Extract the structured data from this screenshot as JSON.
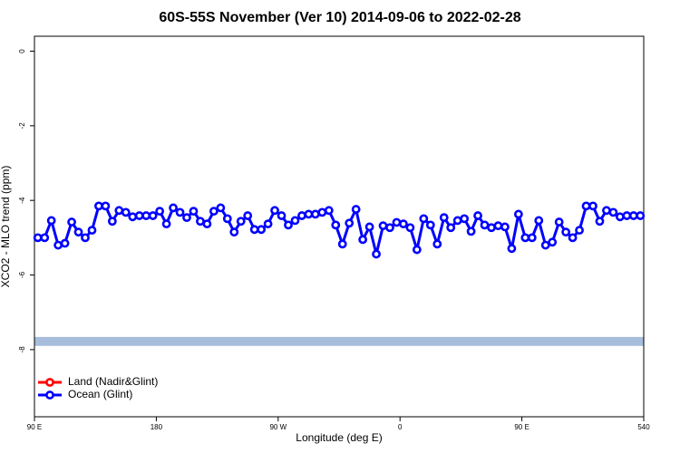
{
  "chart_data": {
    "type": "line",
    "title": "60S-55S November (Ver 10)   2014-09-06 to 2022-02-28",
    "xlabel": "Longitude (deg E)",
    "ylabel": "XCO2 - MLO trend (ppm)",
    "xlim": [
      90,
      540
    ],
    "ylim": [
      -9.8,
      0.4
    ],
    "xticks": [
      {
        "value": 90,
        "label": "90 E"
      },
      180,
      {
        "value": 270,
        "label": "90 W"
      },
      {
        "value": 360,
        "label": "0"
      },
      {
        "value": 450,
        "label": "90 E"
      },
      540
    ],
    "yticks": [
      0,
      -2,
      -4,
      -6,
      -8
    ],
    "legend": "bottom-left",
    "bands": [
      {
        "from": -7.66,
        "to": -7.9,
        "color": "#a6bddb"
      }
    ],
    "x": [
      92.5,
      97.5,
      102.5,
      107.5,
      112.5,
      117.5,
      122.5,
      127.5,
      132.5,
      137.5,
      142.5,
      147.5,
      152.5,
      157.5,
      162.5,
      167.5,
      172.5,
      177.5,
      182.5,
      187.5,
      192.5,
      197.5,
      202.5,
      207.5,
      212.5,
      217.5,
      222.5,
      227.5,
      232.5,
      237.5,
      242.5,
      247.5,
      252.5,
      257.5,
      262.5,
      267.5,
      272.5,
      277.5,
      282.5,
      287.5,
      292.5,
      297.5,
      302.5,
      307.5,
      312.5,
      317.5,
      322.5,
      327.5,
      332.5,
      337.5,
      342.5,
      347.5,
      352.5,
      357.5,
      362.5,
      367.5,
      372.5,
      377.5,
      382.5,
      387.5,
      392.5,
      397.5,
      402.5,
      407.5,
      412.5,
      417.5,
      422.5,
      427.5,
      432.5,
      437.5,
      442.5,
      447.5,
      452.5,
      457.5,
      462.5,
      467.5,
      472.5,
      477.5,
      482.5,
      487.5,
      492.5,
      497.5,
      502.5,
      507.5,
      512.5,
      517.5,
      522.5,
      527.5,
      532.5,
      537.5
    ],
    "series": [
      {
        "name": "Land (Nadir&Glint)",
        "color": "#ff0000",
        "values": [
          null,
          null,
          null,
          null,
          null,
          null,
          null,
          null,
          null,
          null,
          null,
          null,
          null,
          null,
          null,
          null,
          null,
          null,
          null,
          null,
          null,
          null,
          null,
          null,
          null,
          null,
          null,
          null,
          null,
          null,
          null,
          null,
          null,
          null,
          null,
          null,
          null,
          null,
          null,
          null,
          null,
          null,
          null,
          null,
          null,
          null,
          null,
          null,
          null,
          null,
          null,
          null,
          null,
          null,
          null,
          null,
          null,
          null,
          null,
          null,
          null,
          null,
          null,
          null,
          null,
          null,
          null,
          null,
          null,
          null,
          null,
          null,
          null,
          null,
          null,
          null,
          null,
          null,
          null,
          null,
          null,
          null,
          null,
          null,
          null,
          null,
          null,
          null,
          null,
          null
        ]
      },
      {
        "name": "Ocean (Glint)",
        "color": "#0000ff",
        "values": [
          -5.0,
          -5.0,
          -4.54,
          -5.2,
          -5.15,
          -4.58,
          -4.85,
          -5.0,
          -4.8,
          -4.15,
          -4.15,
          -4.56,
          -4.27,
          -4.32,
          -4.44,
          -4.41,
          -4.41,
          -4.41,
          -4.29,
          -4.63,
          -4.2,
          -4.32,
          -4.46,
          -4.29,
          -4.56,
          -4.63,
          -4.29,
          -4.2,
          -4.49,
          -4.85,
          -4.56,
          -4.41,
          -4.78,
          -4.78,
          -4.63,
          -4.27,
          -4.41,
          -4.66,
          -4.54,
          -4.41,
          -4.37,
          -4.37,
          -4.32,
          -4.27,
          -4.66,
          -5.17,
          -4.61,
          -4.24,
          -5.05,
          -4.71,
          -5.44,
          -4.68,
          -4.73,
          -4.59,
          -4.63,
          -4.73,
          -5.32,
          -4.49,
          -4.66,
          -5.17,
          -4.46,
          -4.73,
          -4.54,
          -4.49,
          -4.83,
          -4.41,
          -4.66,
          -4.73,
          -4.68,
          -4.71,
          -5.29,
          -4.37,
          -5.0,
          -5.0,
          -4.54,
          -5.2,
          -5.12,
          -4.58,
          -4.85,
          -5.0,
          -4.8,
          -4.15,
          -4.15,
          -4.56,
          -4.27,
          -4.32,
          -4.44,
          -4.41,
          -4.41,
          -4.41
        ]
      }
    ]
  }
}
